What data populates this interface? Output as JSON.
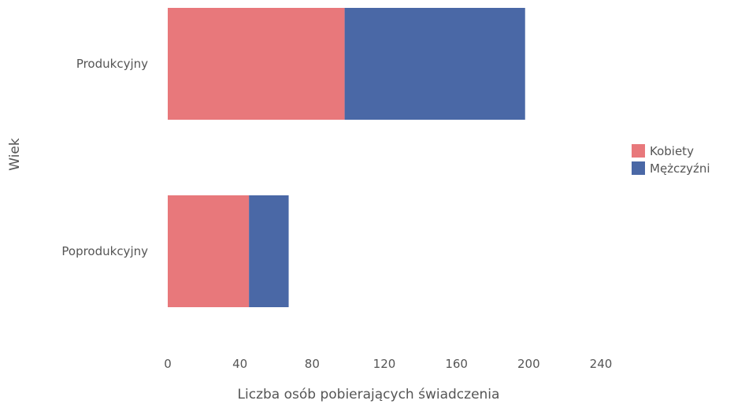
{
  "chart_data": {
    "type": "bar",
    "orientation": "horizontal",
    "stacked": true,
    "categories": [
      "Produkcyjny",
      "Poprodukcyjny"
    ],
    "series": [
      {
        "name": "Kobiety",
        "values": [
          98,
          45
        ],
        "color": "#e8787b"
      },
      {
        "name": "Mężczyźni",
        "values": [
          100,
          22
        ],
        "color": "#4a68a6"
      }
    ],
    "xlabel": "Liczba osób pobierających świadczenia",
    "ylabel": "Wiek",
    "xlim": [
      0,
      240
    ],
    "xticks": [
      "0",
      "40",
      "80",
      "120",
      "160",
      "200",
      "240"
    ],
    "xtick_values": [
      0,
      40,
      80,
      120,
      160,
      200,
      240
    ],
    "legend_position": "right",
    "grid": false
  }
}
